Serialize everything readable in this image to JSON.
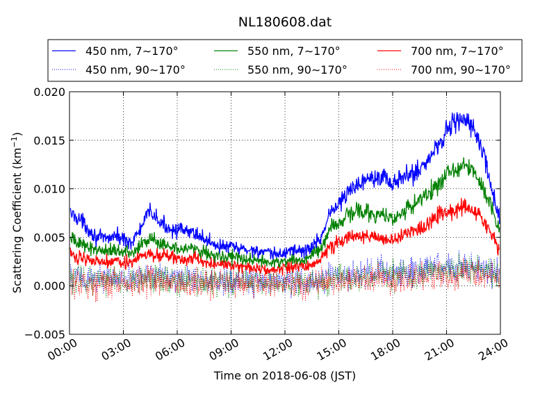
{
  "chart_data": {
    "type": "line",
    "title": "NL180608.dat",
    "xlabel": "Time on 2018-06-08 (JST)",
    "ylabel_main": "Scattering Coefficient (km",
    "ylabel_exp": "−1",
    "ylabel_close": ")",
    "x_unit": "hours",
    "xlim": [
      0,
      24
    ],
    "ylim": [
      -0.005,
      0.02
    ],
    "grid": true,
    "legend_position": "top",
    "xticks": [
      {
        "value": 0,
        "label": "00:00"
      },
      {
        "value": 3,
        "label": "03:00"
      },
      {
        "value": 6,
        "label": "06:00"
      },
      {
        "value": 9,
        "label": "09:00"
      },
      {
        "value": 12,
        "label": "12:00"
      },
      {
        "value": 15,
        "label": "15:00"
      },
      {
        "value": 18,
        "label": "18:00"
      },
      {
        "value": 21,
        "label": "21:00"
      },
      {
        "value": 24,
        "label": "24:00"
      }
    ],
    "yticks": [
      {
        "value": -0.005,
        "label": "−0.005"
      },
      {
        "value": 0.0,
        "label": "0.000"
      },
      {
        "value": 0.005,
        "label": "0.005"
      },
      {
        "value": 0.01,
        "label": "0.010"
      },
      {
        "value": 0.015,
        "label": "0.015"
      },
      {
        "value": 0.02,
        "label": "0.020"
      }
    ],
    "x": [
      0,
      0.5,
      1,
      1.5,
      2,
      2.5,
      3,
      3.5,
      4,
      4.5,
      5,
      5.5,
      6,
      6.5,
      7,
      7.5,
      8,
      8.5,
      9,
      9.5,
      10,
      10.5,
      11,
      11.5,
      12,
      12.5,
      13,
      13.5,
      14,
      14.5,
      15,
      15.5,
      16,
      16.5,
      17,
      17.5,
      18,
      18.5,
      19,
      19.5,
      20,
      20.5,
      21,
      21.5,
      22,
      22.5,
      23,
      23.5,
      24
    ],
    "series": [
      {
        "name": "450 nm, 7∼170°",
        "color": "#0000ff",
        "style": "solid",
        "values": [
          0.0075,
          0.007,
          0.006,
          0.005,
          0.0048,
          0.0052,
          0.0048,
          0.0045,
          0.006,
          0.0078,
          0.0065,
          0.006,
          0.0058,
          0.0055,
          0.0055,
          0.0048,
          0.0044,
          0.004,
          0.004,
          0.0038,
          0.0037,
          0.0036,
          0.0033,
          0.0032,
          0.0034,
          0.0038,
          0.0035,
          0.004,
          0.005,
          0.0075,
          0.0085,
          0.0095,
          0.0105,
          0.011,
          0.0115,
          0.0112,
          0.0105,
          0.011,
          0.0115,
          0.012,
          0.013,
          0.0145,
          0.016,
          0.0172,
          0.017,
          0.0162,
          0.014,
          0.01,
          0.0065
        ]
      },
      {
        "name": "550 nm, 7∼170°",
        "color": "#008000",
        "style": "solid",
        "values": [
          0.0048,
          0.0045,
          0.004,
          0.0038,
          0.0036,
          0.0038,
          0.0036,
          0.0033,
          0.0042,
          0.0048,
          0.0045,
          0.0042,
          0.004,
          0.0038,
          0.004,
          0.0035,
          0.0032,
          0.003,
          0.003,
          0.0028,
          0.0027,
          0.0026,
          0.0024,
          0.0024,
          0.0026,
          0.0028,
          0.0026,
          0.003,
          0.0038,
          0.0058,
          0.0065,
          0.0072,
          0.0078,
          0.0076,
          0.0074,
          0.0072,
          0.007,
          0.0075,
          0.0082,
          0.0088,
          0.0095,
          0.0105,
          0.0115,
          0.012,
          0.0125,
          0.0118,
          0.0105,
          0.008,
          0.0055
        ]
      },
      {
        "name": "700 nm, 7∼170°",
        "color": "#ff0000",
        "style": "solid",
        "values": [
          0.0032,
          0.003,
          0.0028,
          0.0026,
          0.0025,
          0.0027,
          0.0025,
          0.0024,
          0.003,
          0.0033,
          0.0031,
          0.003,
          0.0028,
          0.0026,
          0.0028,
          0.0025,
          0.0023,
          0.0021,
          0.0021,
          0.002,
          0.0019,
          0.0018,
          0.0017,
          0.0017,
          0.0018,
          0.002,
          0.0019,
          0.0022,
          0.0028,
          0.004,
          0.0045,
          0.0049,
          0.0052,
          0.0051,
          0.005,
          0.0049,
          0.0048,
          0.0052,
          0.0057,
          0.006,
          0.0065,
          0.0071,
          0.0075,
          0.0078,
          0.0082,
          0.0076,
          0.0068,
          0.0052,
          0.0035
        ]
      },
      {
        "name": "450 nm, 90∼170°",
        "color": "#0000ff",
        "style": "dotted",
        "values": [
          0.001,
          0.0009,
          0.0008,
          0.0008,
          0.0007,
          0.0008,
          0.0007,
          0.0007,
          0.0009,
          0.0011,
          0.001,
          0.0009,
          0.0008,
          0.0008,
          0.0008,
          0.0007,
          0.0006,
          0.0006,
          0.0005,
          0.0005,
          0.0005,
          0.0005,
          0.0004,
          0.0004,
          0.0005,
          0.0005,
          0.0005,
          0.0006,
          0.0007,
          0.0009,
          0.001,
          0.0011,
          0.0012,
          0.0013,
          0.0014,
          0.0013,
          0.0013,
          0.0014,
          0.0015,
          0.0016,
          0.0017,
          0.0019,
          0.002,
          0.0021,
          0.0021,
          0.002,
          0.0018,
          0.0014,
          0.001
        ]
      },
      {
        "name": "550 nm, 90∼170°",
        "color": "#008000",
        "style": "dotted",
        "values": [
          0.0007,
          0.0007,
          0.0006,
          0.0006,
          0.0005,
          0.0006,
          0.0005,
          0.0005,
          0.0007,
          0.0008,
          0.0007,
          0.0007,
          0.0006,
          0.0006,
          0.0006,
          0.0005,
          0.0005,
          0.0004,
          0.0004,
          0.0004,
          0.0004,
          0.0004,
          0.0003,
          0.0003,
          0.0004,
          0.0004,
          0.0004,
          0.0004,
          0.0005,
          0.0007,
          0.0008,
          0.0009,
          0.001,
          0.001,
          0.001,
          0.001,
          0.001,
          0.0011,
          0.0012,
          0.0013,
          0.0014,
          0.0015,
          0.0016,
          0.0017,
          0.0017,
          0.0016,
          0.0015,
          0.0012,
          0.0008
        ]
      },
      {
        "name": "700 nm, 90∼170°",
        "color": "#ff0000",
        "style": "dotted",
        "values": [
          0.0004,
          0.0004,
          0.0003,
          0.0003,
          0.0003,
          0.0003,
          0.0003,
          0.0003,
          0.0004,
          0.0005,
          0.0004,
          0.0004,
          0.0004,
          0.0003,
          0.0003,
          0.0003,
          0.0003,
          0.0002,
          0.0002,
          0.0002,
          0.0002,
          0.0002,
          0.0002,
          0.0002,
          0.0002,
          0.0002,
          0.0002,
          0.0003,
          0.0003,
          0.0004,
          0.0005,
          0.0005,
          0.0006,
          0.0006,
          0.0006,
          0.0006,
          0.0006,
          0.0007,
          0.0008,
          0.0008,
          0.0009,
          0.001,
          0.0011,
          0.0012,
          0.0012,
          0.0011,
          0.001,
          0.0008,
          0.0005
        ]
      }
    ]
  }
}
